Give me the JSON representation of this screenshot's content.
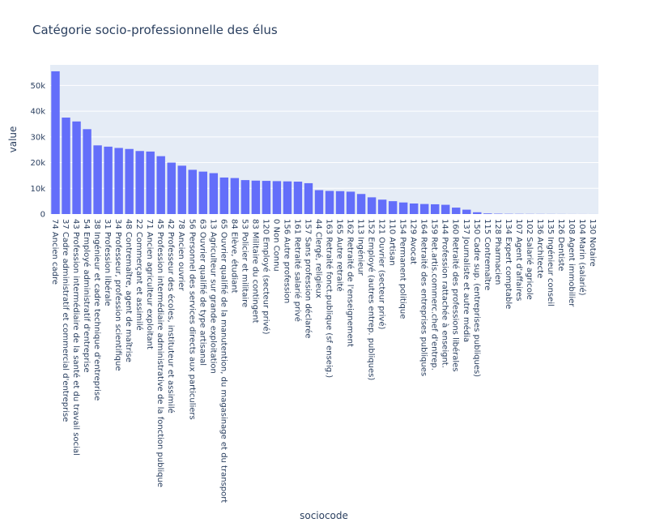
{
  "chart_data": {
    "type": "bar",
    "title": "Catégorie socio-professionnelle des élus",
    "xlabel": "sociocode",
    "ylabel": "value",
    "ylim": [
      0,
      58000
    ],
    "yticks": [
      0,
      10000,
      20000,
      30000,
      40000,
      50000
    ],
    "yticklabels": [
      "0",
      "10k",
      "20k",
      "30k",
      "40k",
      "50k"
    ],
    "bar_color": "#636efa",
    "plot_bg": "#e5ecf6",
    "grid": true,
    "categories": [
      "74 Ancien cadre",
      "37 Cadre administratif et commercial d'entreprise",
      "43 Profession intermédiaire de la santé et du travail social",
      "54 Employé administratif d'entreprise",
      "38 Ingénieur et cadre technique d'entreprise",
      "31 Profession libérale",
      "34 Professeur, profession scientifique",
      "48 Contremaître, agent de maîtrise",
      "22 Commerçant et assimilé",
      "71 Ancien agriculteur exploitant",
      "45 Profession intermédiaire administrative de la fonction publique",
      "42 Professeur des écoles, instituteur et assimilé",
      "78 Ancien ouvrier",
      "56 Personnel des services directs aux particuliers",
      "63 Ouvrier qualifié de type artisanal",
      "13 Agriculteur sur grande exploitation",
      "65 Ouvrier qualifié de la manutention, du magasinage et du transport",
      "84 Elève, étudiant",
      "53 Policier et militaire",
      "83 Militaire du contingent",
      "120 Employé (secteur privé)",
      "0 Non Connu",
      "156 Autre profession",
      "161 Retraité salarié privé",
      "157 Sans profession déclarée",
      "44 Clergé, religieux",
      "163 Retraité fonct.publique (sf enseig.)",
      "165 Autre retraité",
      "162 Retraité de l'enseignement",
      "113 Ingénieur",
      "152 Employé (autres entrep. publiques)",
      "121 Ouvrier (secteur privé)",
      "110 Artisan",
      "154 Permanent politique",
      "129 Avocat",
      "164 Retraité des entreprises publiques",
      "159 Ret.artis.commerc.chef d'entrep.",
      "144 Profession rattachée à enseignt.",
      "160 Retraité des professions libérales",
      "137 Journaliste et autre média",
      "150 Cadre sup. (entreprises publiques)",
      "115 Contremaître",
      "128 Pharmacien",
      "134 Expert comptable",
      "107 Agent d'affaires",
      "102 Salarié agricole",
      "136 Architecte",
      "135 Ingénieur conseil",
      "126 Dentiste",
      "108 Agent immobilier",
      "104 Marin (salarié)",
      "130 Notaire"
    ],
    "values": [
      55500,
      37500,
      36000,
      33000,
      26700,
      26200,
      25700,
      25300,
      24500,
      24300,
      22500,
      20000,
      18800,
      17200,
      16500,
      15900,
      14200,
      14000,
      13200,
      13000,
      12900,
      12800,
      12700,
      12600,
      12000,
      9300,
      9000,
      8900,
      8700,
      7800,
      6500,
      5600,
      5000,
      4500,
      4100,
      3900,
      3800,
      3600,
      2500,
      1700,
      700,
      250,
      150,
      100,
      80,
      60,
      50,
      40,
      30,
      20,
      15,
      10
    ]
  }
}
